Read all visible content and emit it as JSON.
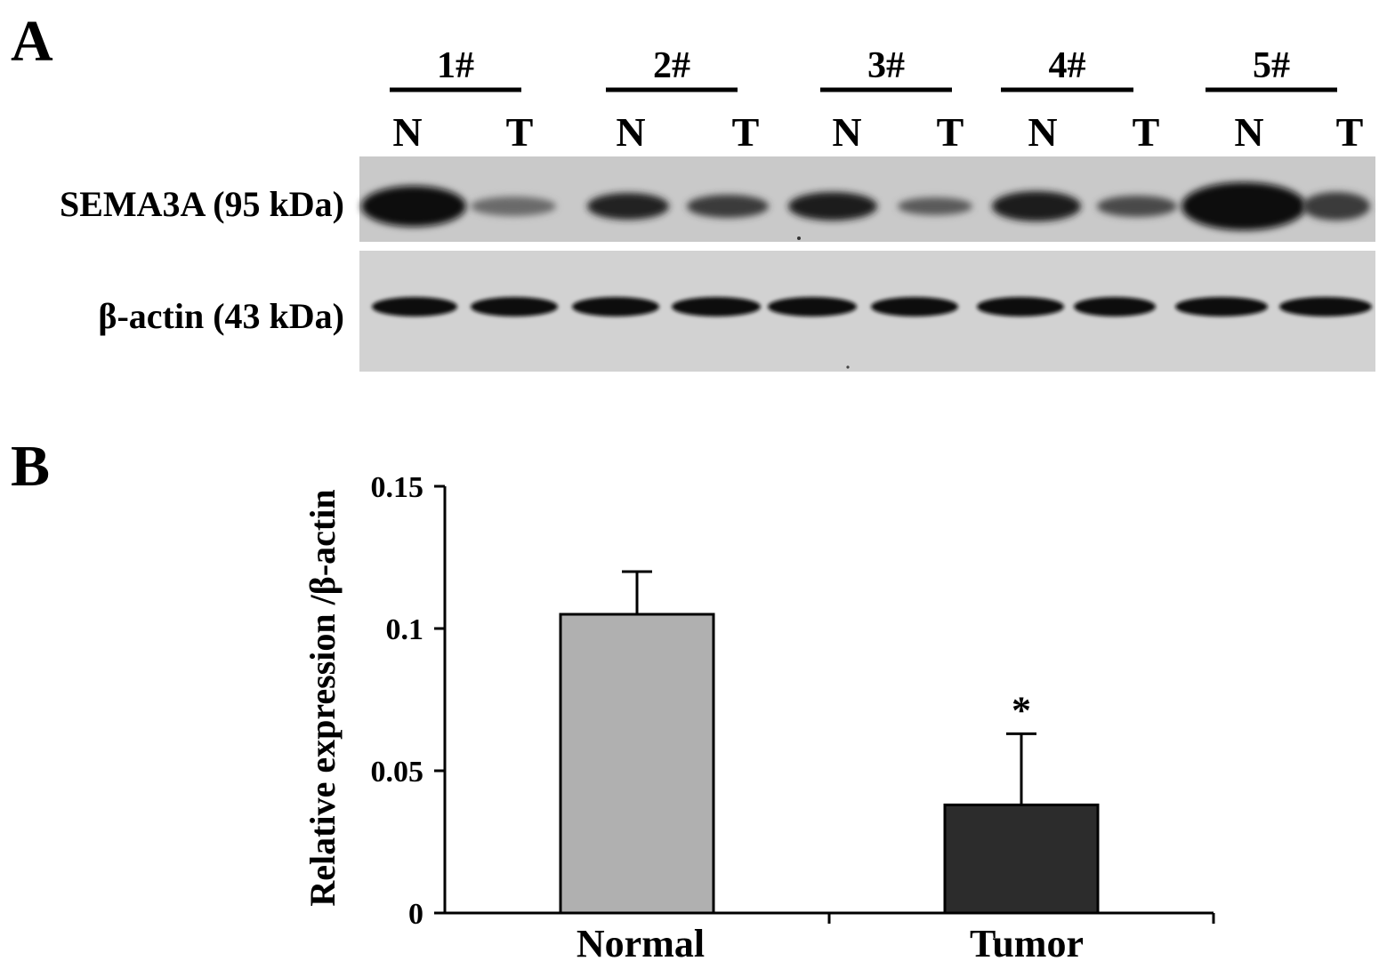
{
  "panel_a": {
    "letter": "A",
    "samples": [
      {
        "name": "1#",
        "lanes": [
          "N",
          "T"
        ]
      },
      {
        "name": "2#",
        "lanes": [
          "N",
          "T"
        ]
      },
      {
        "name": "3#",
        "lanes": [
          "N",
          "T"
        ]
      },
      {
        "name": "4#",
        "lanes": [
          "N",
          "T"
        ]
      },
      {
        "name": "5#",
        "lanes": [
          "N",
          "T"
        ]
      }
    ],
    "blots": [
      {
        "label": "SEMA3A (95 kDa)"
      },
      {
        "label": "β-actin (43 kDa)"
      }
    ]
  },
  "panel_b": {
    "letter": "B"
  },
  "chart_data": {
    "type": "bar",
    "categories": [
      "Normal",
      "Tumor"
    ],
    "values": [
      0.105,
      0.038
    ],
    "error": [
      0.015,
      0.025
    ],
    "significance": [
      "",
      "*"
    ],
    "ylabel": "Relative expression /β-actin",
    "xlabel": "",
    "ylim": [
      0,
      0.15
    ],
    "yticks": [
      0,
      0.05,
      0.1,
      0.15
    ],
    "ytick_labels": [
      "0",
      "0.05",
      "0.1",
      "0.15"
    ],
    "grid": false,
    "colors": [
      "#b0b0b0",
      "#2c2c2c"
    ]
  }
}
